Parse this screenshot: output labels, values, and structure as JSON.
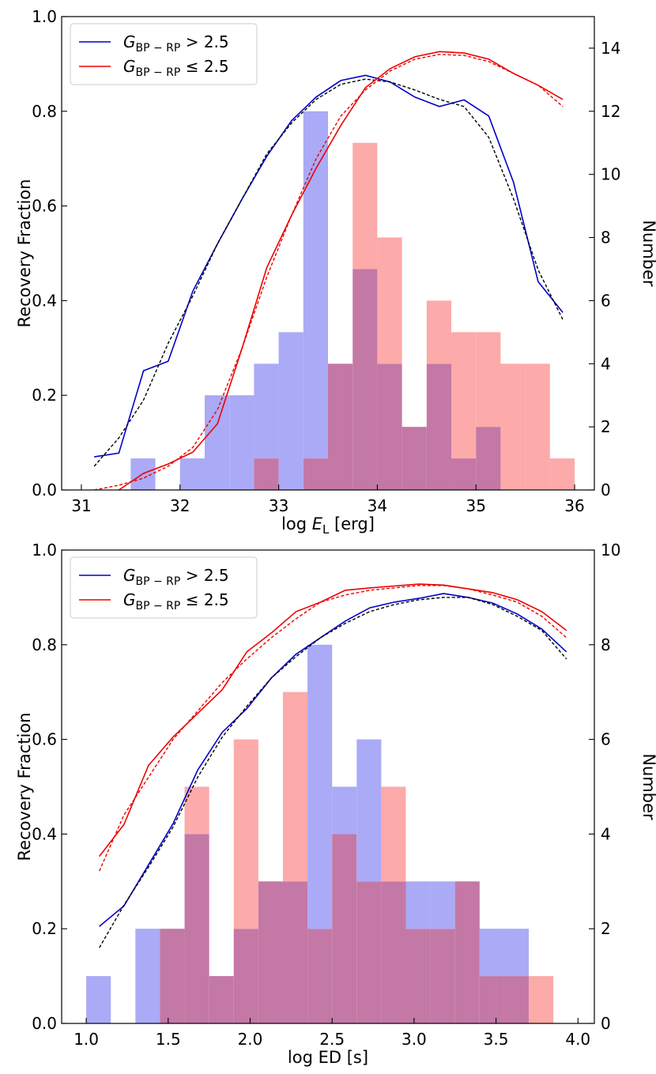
{
  "colors": {
    "blue": "#0000cc",
    "red": "#ee0000",
    "blue_fill": "#aaaaf6",
    "red_fill": "#fcaaaa",
    "overlap_fill": "#c478a6",
    "black": "#000000"
  },
  "chart_data": [
    {
      "type": "histogram+line",
      "xlabel_prefix": "log ",
      "xlabel_var": "E",
      "xlabel_sub": "L",
      "xlabel_suffix": " [erg]",
      "ylabel_left": "Recovery Fraction",
      "ylabel_right": "Number",
      "xlim": [
        30.8,
        36.2
      ],
      "ylim_left": [
        0,
        1.0
      ],
      "ylim_right": [
        0,
        15
      ],
      "xticks": [
        31,
        32,
        33,
        34,
        35,
        36
      ],
      "xtick_labels": [
        "31",
        "32",
        "33",
        "34",
        "35",
        "36"
      ],
      "yticks_left": [
        0,
        0.2,
        0.4,
        0.6,
        0.8,
        1.0
      ],
      "ytick_labels_left": [
        "0.0",
        "0.2",
        "0.4",
        "0.6",
        "0.8",
        "1.0"
      ],
      "yticks_right": [
        0,
        2,
        4,
        6,
        8,
        10,
        12,
        14
      ],
      "ytick_labels_right": [
        "0",
        "2",
        "4",
        "6",
        "8",
        "10",
        "12",
        "14"
      ],
      "legend": [
        {
          "name": "blue-gt",
          "pre": "G",
          "sub": "BP − RP",
          "post": " > 2.5",
          "color": "blue"
        },
        {
          "name": "red-le",
          "pre": "G",
          "sub": "BP − RP",
          "post": " ≤ 2.5",
          "color": "red"
        }
      ],
      "hist_bins": [
        31.5,
        31.75,
        32.0,
        32.25,
        32.5,
        32.75,
        33.0,
        33.25,
        33.5,
        33.75,
        34.0,
        34.25,
        34.5,
        34.75,
        35.0,
        35.25,
        35.5,
        35.75,
        36.0
      ],
      "hist_blue": [
        1,
        0,
        1,
        3,
        3,
        4,
        5,
        12,
        4,
        7,
        4,
        2,
        4,
        1,
        2,
        0,
        0,
        0
      ],
      "hist_red": [
        0,
        0,
        0,
        0,
        0,
        1,
        0,
        1,
        4,
        11,
        8,
        2,
        6,
        5,
        5,
        4,
        4,
        1
      ],
      "line_blue": {
        "x": [
          31.13,
          31.38,
          31.63,
          31.88,
          32.13,
          32.38,
          32.63,
          32.88,
          33.13,
          33.38,
          33.63,
          33.88,
          34.13,
          34.38,
          34.63,
          34.88,
          35.13,
          35.38,
          35.63,
          35.88
        ],
        "y": [
          0.07,
          0.078,
          0.252,
          0.272,
          0.42,
          0.52,
          0.615,
          0.705,
          0.78,
          0.83,
          0.865,
          0.876,
          0.862,
          0.83,
          0.81,
          0.824,
          0.79,
          0.65,
          0.44,
          0.375
        ]
      },
      "fit_blue": {
        "x": [
          31.13,
          31.38,
          31.63,
          31.88,
          32.13,
          32.38,
          32.63,
          32.88,
          33.13,
          33.38,
          33.63,
          33.88,
          34.13,
          34.38,
          34.63,
          34.88,
          35.13,
          35.38,
          35.63,
          35.88
        ],
        "y": [
          0.05,
          0.11,
          0.19,
          0.31,
          0.41,
          0.52,
          0.615,
          0.71,
          0.775,
          0.825,
          0.857,
          0.868,
          0.862,
          0.845,
          0.825,
          0.81,
          0.745,
          0.615,
          0.465,
          0.36
        ]
      },
      "line_red": {
        "x": [
          31.38,
          31.63,
          31.88,
          32.13,
          32.38,
          32.63,
          32.88,
          33.13,
          33.38,
          33.63,
          33.88,
          34.13,
          34.38,
          34.63,
          34.88,
          35.13,
          35.38,
          35.63,
          35.88
        ],
        "y": [
          0.0,
          0.035,
          0.055,
          0.08,
          0.14,
          0.3,
          0.47,
          0.58,
          0.68,
          0.77,
          0.85,
          0.89,
          0.915,
          0.926,
          0.923,
          0.91,
          0.88,
          0.855,
          0.825
        ]
      },
      "fit_red": {
        "x": [
          31.13,
          31.38,
          31.63,
          31.88,
          32.13,
          32.38,
          32.63,
          32.88,
          33.13,
          33.38,
          33.63,
          33.88,
          34.13,
          34.38,
          34.63,
          34.88,
          35.13,
          35.38,
          35.63,
          35.88
        ],
        "y": [
          0.0,
          0.01,
          0.025,
          0.05,
          0.09,
          0.17,
          0.3,
          0.45,
          0.58,
          0.7,
          0.79,
          0.845,
          0.885,
          0.91,
          0.92,
          0.918,
          0.905,
          0.88,
          0.855,
          0.81
        ]
      }
    },
    {
      "type": "histogram+line",
      "xlabel_prefix": "log ED [s]",
      "xlabel_var": "",
      "xlabel_sub": "",
      "xlabel_suffix": "",
      "ylabel_left": "Recovery Fraction",
      "ylabel_right": "Number",
      "xlim": [
        0.85,
        4.1
      ],
      "ylim_left": [
        0,
        1.0
      ],
      "ylim_right": [
        0,
        10
      ],
      "xticks": [
        1.0,
        1.5,
        2.0,
        2.5,
        3.0,
        3.5,
        4.0
      ],
      "xtick_labels": [
        "1.0",
        "1.5",
        "2.0",
        "2.5",
        "3.0",
        "3.5",
        "4.0"
      ],
      "yticks_left": [
        0,
        0.2,
        0.4,
        0.6,
        0.8,
        1.0
      ],
      "ytick_labels_left": [
        "0.0",
        "0.2",
        "0.4",
        "0.6",
        "0.8",
        "1.0"
      ],
      "yticks_right": [
        0,
        2,
        4,
        6,
        8,
        10
      ],
      "ytick_labels_right": [
        "0",
        "2",
        "4",
        "6",
        "8",
        "10"
      ],
      "legend": [
        {
          "name": "blue-gt",
          "pre": "G",
          "sub": "BP − RP",
          "post": " > 2.5",
          "color": "blue"
        },
        {
          "name": "red-le",
          "pre": "G",
          "sub": "BP − RP",
          "post": " ≤ 2.5",
          "color": "red"
        }
      ],
      "hist_bins": [
        1.0,
        1.15,
        1.3,
        1.45,
        1.6,
        1.75,
        1.9,
        2.05,
        2.2,
        2.35,
        2.5,
        2.65,
        2.8,
        2.95,
        3.1,
        3.25,
        3.4,
        3.55,
        3.7,
        3.85
      ],
      "hist_blue": [
        1,
        0,
        2,
        2,
        4,
        1,
        2,
        3,
        3,
        8,
        5,
        6,
        3,
        3,
        3,
        3,
        2,
        2,
        0
      ],
      "hist_red": [
        0,
        0,
        0,
        2,
        5,
        1,
        6,
        3,
        7,
        2,
        4,
        3,
        5,
        2,
        2,
        3,
        1,
        1,
        1
      ],
      "line_blue": {
        "x": [
          1.08,
          1.23,
          1.38,
          1.53,
          1.68,
          1.83,
          1.98,
          2.13,
          2.28,
          2.43,
          2.58,
          2.73,
          2.88,
          3.03,
          3.18,
          3.33,
          3.48,
          3.63,
          3.78,
          3.93
        ],
        "y": [
          0.205,
          0.248,
          0.335,
          0.422,
          0.535,
          0.615,
          0.665,
          0.73,
          0.78,
          0.815,
          0.85,
          0.878,
          0.89,
          0.898,
          0.908,
          0.9,
          0.888,
          0.865,
          0.833,
          0.785
        ]
      },
      "fit_blue": {
        "x": [
          1.08,
          1.23,
          1.38,
          1.53,
          1.68,
          1.83,
          1.98,
          2.13,
          2.28,
          2.43,
          2.58,
          2.73,
          2.88,
          3.03,
          3.18,
          3.33,
          3.48,
          3.63,
          3.78,
          3.93
        ],
        "y": [
          0.16,
          0.25,
          0.33,
          0.415,
          0.52,
          0.605,
          0.67,
          0.73,
          0.775,
          0.815,
          0.845,
          0.87,
          0.885,
          0.895,
          0.9,
          0.9,
          0.885,
          0.86,
          0.83,
          0.77
        ]
      },
      "line_red": {
        "x": [
          1.08,
          1.23,
          1.38,
          1.53,
          1.68,
          1.83,
          1.98,
          2.13,
          2.28,
          2.43,
          2.58,
          2.73,
          2.88,
          3.03,
          3.18,
          3.33,
          3.48,
          3.63,
          3.78,
          3.93
        ],
        "y": [
          0.353,
          0.42,
          0.545,
          0.605,
          0.655,
          0.705,
          0.785,
          0.825,
          0.87,
          0.89,
          0.915,
          0.92,
          0.924,
          0.928,
          0.926,
          0.918,
          0.91,
          0.895,
          0.87,
          0.83
        ]
      },
      "fit_red": {
        "x": [
          1.08,
          1.23,
          1.38,
          1.53,
          1.68,
          1.83,
          1.98,
          2.13,
          2.28,
          2.43,
          2.58,
          2.73,
          2.88,
          3.03,
          3.18,
          3.33,
          3.48,
          3.63,
          3.78,
          3.93
        ],
        "y": [
          0.322,
          0.44,
          0.52,
          0.6,
          0.66,
          0.72,
          0.77,
          0.815,
          0.855,
          0.89,
          0.905,
          0.915,
          0.92,
          0.925,
          0.925,
          0.918,
          0.905,
          0.89,
          0.86,
          0.815
        ]
      }
    }
  ]
}
